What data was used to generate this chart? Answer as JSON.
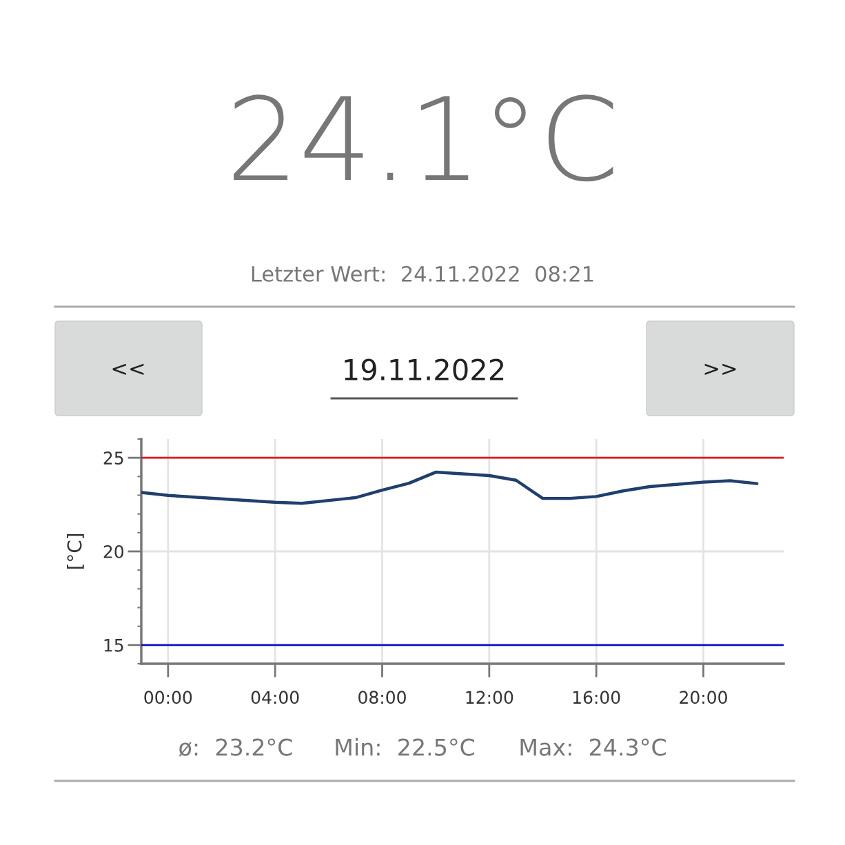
{
  "chart_data": {
    "type": "line",
    "title": "24.1°C",
    "subtitle": "Letzter Wert:  24.11.2022  08:21",
    "ylabel": "[°C]",
    "annotations": [
      "<<",
      "19.11.2022",
      ">>",
      "ø:  23.2°C",
      "Min:  22.5°C",
      "Max:  24.3°C"
    ],
    "series": [
      {
        "color": "#1f3f6e",
        "x": [
          -1,
          0,
          4,
          5,
          7,
          8,
          9,
          10,
          12,
          13,
          14,
          15,
          16,
          17,
          18,
          20,
          21,
          22
        ],
        "values": [
          23.15,
          22.99,
          22.62,
          22.57,
          22.87,
          23.27,
          23.64,
          24.23,
          24.05,
          23.8,
          22.83,
          22.83,
          22.93,
          23.23,
          23.46,
          23.7,
          23.77,
          23.62
        ]
      }
    ],
    "xlim": [
      -1,
      23
    ],
    "xticks": [
      {
        "value": 0,
        "label": "00:00"
      },
      {
        "value": 4,
        "label": "04:00"
      },
      {
        "value": 8,
        "label": "08:00"
      },
      {
        "value": 12,
        "label": "12:00"
      },
      {
        "value": 16,
        "label": "16:00"
      },
      {
        "value": 20,
        "label": "20:00"
      }
    ],
    "ylim": [
      14,
      26
    ],
    "yticks": [
      15,
      20,
      25
    ],
    "ref_lines": [
      {
        "axis": "y",
        "value": 25,
        "color": "#e31a1c"
      },
      {
        "axis": "y",
        "value": 15,
        "color": "#1010c8"
      }
    ],
    "grid": true,
    "marker": "none",
    "line_style": "solid"
  }
}
